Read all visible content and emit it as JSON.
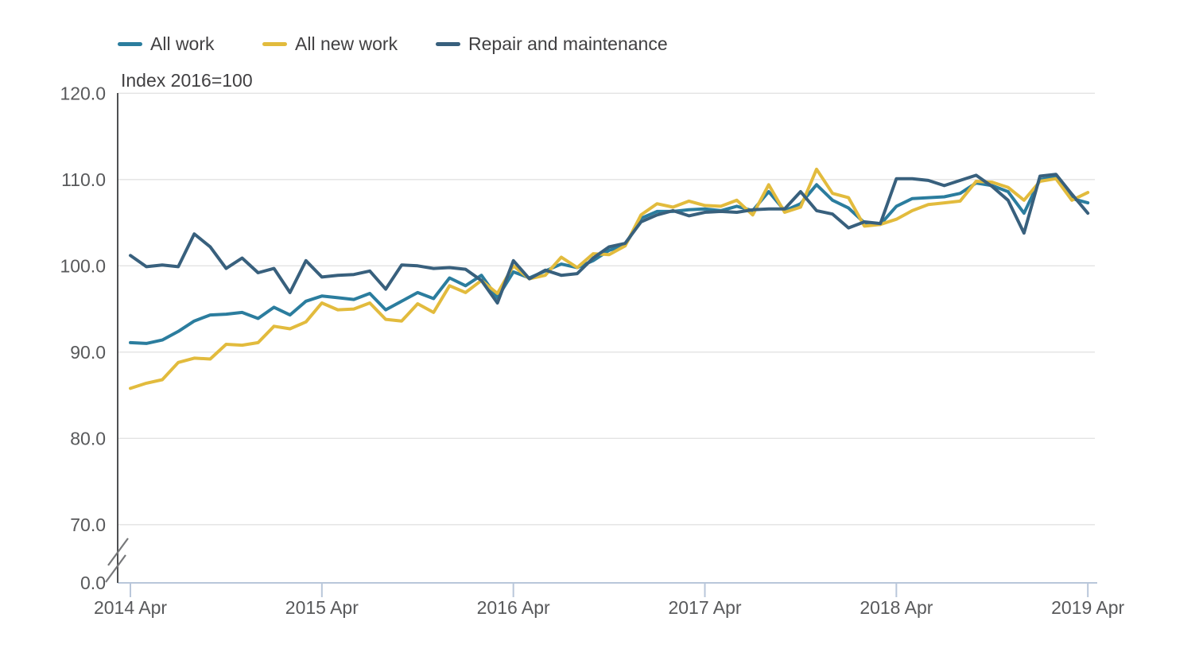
{
  "chart": {
    "subtitle": "Index 2016=100"
  },
  "chart_data": {
    "type": "line",
    "title": "",
    "subtitle": "Index 2016=100",
    "x_frequency": "monthly",
    "x_start_label": "2014 Apr",
    "x_end_label": "2019 Apr",
    "points_per_series": 61,
    "grid": "horizontal",
    "legend_position": "top",
    "y_axis_break": true,
    "ylim_shown": [
      70,
      120
    ],
    "y_ticks": [
      {
        "label": "120.0",
        "value": 120
      },
      {
        "label": "110.0",
        "value": 110
      },
      {
        "label": "100.0",
        "value": 100
      },
      {
        "label": "90.0",
        "value": 90
      },
      {
        "label": "80.0",
        "value": 80
      },
      {
        "label": "70.0",
        "value": 70
      },
      {
        "label": "0.0",
        "value": 0
      }
    ],
    "x_ticks": [
      {
        "label": "2014 Apr",
        "month": 0
      },
      {
        "label": "2015 Apr",
        "month": 12
      },
      {
        "label": "2016 Apr",
        "month": 24
      },
      {
        "label": "2017 Apr",
        "month": 36
      },
      {
        "label": "2018 Apr",
        "month": 48
      },
      {
        "label": "2019 Apr",
        "month": 60
      }
    ],
    "series": [
      {
        "name": "All work",
        "color": "#2b7d9e",
        "values": [
          91.1,
          91.0,
          91.4,
          92.4,
          93.6,
          94.3,
          94.4,
          94.6,
          93.9,
          95.2,
          94.3,
          95.9,
          96.5,
          96.3,
          96.1,
          96.8,
          94.9,
          95.9,
          96.9,
          96.2,
          98.6,
          97.7,
          98.9,
          96.3,
          99.3,
          98.6,
          99.4,
          100.2,
          99.8,
          100.6,
          101.8,
          102.4,
          105.5,
          106.3,
          106.3,
          106.5,
          106.6,
          106.4,
          106.9,
          106.4,
          108.6,
          106.4,
          107.2,
          109.4,
          107.6,
          106.7,
          105.0,
          104.8,
          106.9,
          107.8,
          107.9,
          108.0,
          108.4,
          109.6,
          109.3,
          108.6,
          106.1,
          110.0,
          110.3,
          107.8,
          107.3
        ]
      },
      {
        "name": "All new work",
        "color": "#e2bb3d",
        "values": [
          85.8,
          86.4,
          86.8,
          88.8,
          89.3,
          89.2,
          90.9,
          90.8,
          91.1,
          93.0,
          92.7,
          93.5,
          95.7,
          94.9,
          95.0,
          95.7,
          93.8,
          93.6,
          95.6,
          94.6,
          97.7,
          96.9,
          98.3,
          96.8,
          100.0,
          98.5,
          98.9,
          101.0,
          99.8,
          101.4,
          101.3,
          102.3,
          105.9,
          107.2,
          106.8,
          107.5,
          107.0,
          106.9,
          107.6,
          105.9,
          109.4,
          106.2,
          106.8,
          111.2,
          108.4,
          107.9,
          104.6,
          104.8,
          105.4,
          106.4,
          107.1,
          107.3,
          107.5,
          109.8,
          109.7,
          109.1,
          107.6,
          109.8,
          110.1,
          107.6,
          108.5
        ]
      },
      {
        "name": "Repair and maintenance",
        "color": "#38607d",
        "values": [
          101.2,
          99.9,
          100.1,
          99.9,
          103.7,
          102.2,
          99.7,
          100.9,
          99.2,
          99.7,
          96.9,
          100.6,
          98.7,
          98.9,
          99.0,
          99.4,
          97.3,
          100.1,
          100.0,
          99.7,
          99.8,
          99.6,
          98.3,
          95.7,
          100.6,
          98.5,
          99.5,
          98.9,
          99.1,
          100.9,
          102.2,
          102.6,
          105.1,
          105.9,
          106.4,
          105.8,
          106.2,
          106.3,
          106.2,
          106.5,
          106.6,
          106.6,
          108.6,
          106.4,
          106.0,
          104.4,
          105.1,
          104.9,
          110.1,
          110.1,
          109.9,
          109.3,
          109.9,
          110.5,
          109.2,
          107.6,
          103.8,
          110.4,
          110.6,
          108.3,
          106.1
        ]
      }
    ]
  }
}
